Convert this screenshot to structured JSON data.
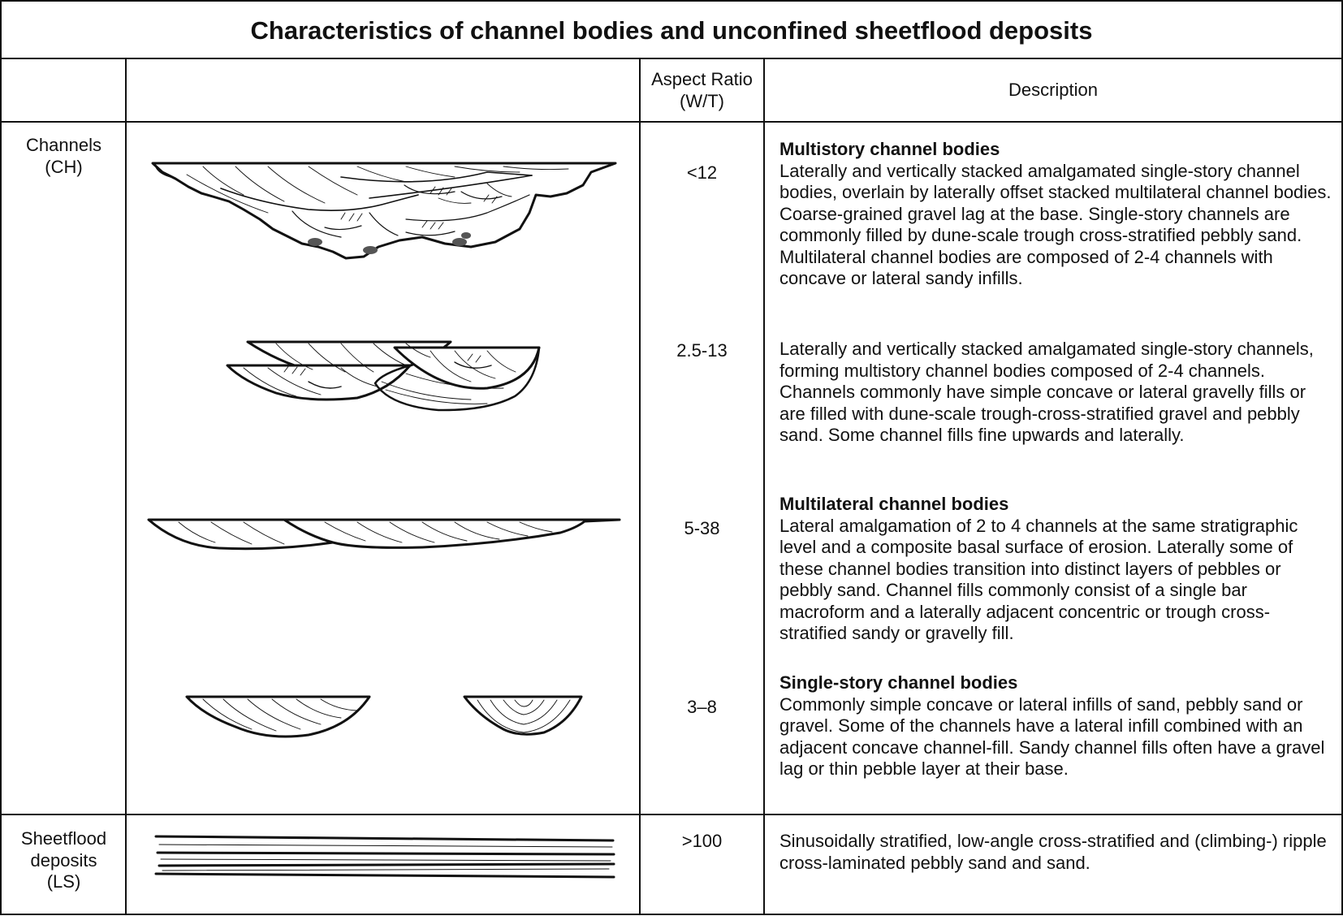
{
  "title": "Characteristics of channel bodies and unconfined sheetflood deposits",
  "header": {
    "col3_line1": "Aspect Ratio",
    "col3_line2": "(W/T)",
    "col4": "Description"
  },
  "rows": [
    {
      "label_line1": "Channels",
      "label_line2": "(CH)",
      "entries": [
        {
          "ratio": "<12",
          "heading": "Multistory channel bodies",
          "text": "Laterally and vertically  stacked amalgamated single-story channel bodies, overlain by laterally offset stacked multilateral channel bodies.  Coarse-grained gravel lag at the base. Single-story channels are commonly filled by dune-scale trough cross-stratified pebbly sand. Multilateral channel bodies  are composed of 2-4 channels with concave or lateral sandy infills."
        },
        {
          "ratio": "2.5-13",
          "heading": "",
          "text": "Laterally and vertically stacked amalgamated single-story channels, forming multistory channel bodies  composed of 2-4 channels. Channels commonly have simple concave or lateral gravelly fills or are filled with dune-scale trough-cross-stratified gravel and pebbly sand. Some channel fills fine upwards and laterally."
        },
        {
          "ratio": "5-38",
          "heading": "Multilateral channel bodies",
          "text": "Lateral amalgamation of 2 to 4 channels at the same stratigraphic level and a composite basal surface of erosion. Laterally some of these channel bodies transition into distinct layers of pebbles or pebbly sand. Channel fills commonly consist of a single bar macroform and a laterally adjacent concentric or trough cross-stratified sandy or gravelly  fill."
        },
        {
          "ratio": "3–8",
          "heading": "Single-story channel bodies",
          "text": "Commonly simple concave or lateral infills of sand, pebbly sand or gravel. Some of the channels have a lateral infill combined with an adjacent concave channel-fill. Sandy channel fills often have a gravel lag or thin pebble layer at their base."
        }
      ]
    },
    {
      "label_line1": "Sheetflood",
      "label_line2": "deposits",
      "label_line3": "(LS)",
      "entries": [
        {
          "ratio": ">100",
          "heading": "",
          "text": "Sinusoidally stratified, low-angle cross-stratified and (climbing-) ripple cross-laminated pebbly sand and sand."
        }
      ]
    }
  ],
  "sketch_icons": [
    "multistory-channel-body-sketch",
    "stacked-channels-sketch",
    "multilateral-channel-sketch",
    "single-story-channel-sketches",
    "sheetflood-layers-sketch"
  ]
}
